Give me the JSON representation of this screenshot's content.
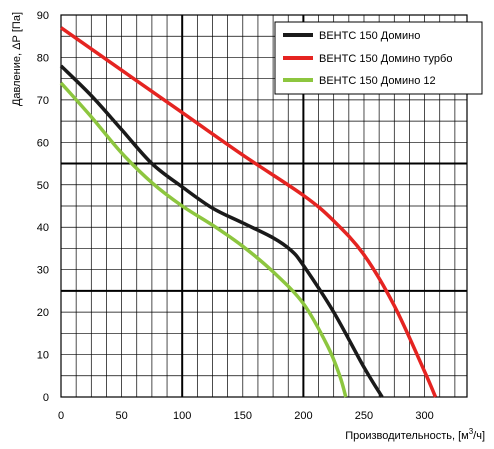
{
  "chart_data": {
    "type": "line",
    "title": "",
    "xlabel": "Производительность, [м",
    "xlabel_sup": "3",
    "xlabel_tail": "/ч]",
    "ylabel": "Давление, ΔР [Па]",
    "xlim": [
      0,
      335
    ],
    "ylim": [
      0,
      90
    ],
    "x_ticks": [
      0,
      50,
      100,
      150,
      200,
      250,
      300
    ],
    "y_ticks": [
      0,
      10,
      20,
      30,
      40,
      50,
      60,
      70,
      80,
      90
    ],
    "x_minor_step": 12.5,
    "y_minor_step": 5,
    "x_major_lines": [
      100,
      200
    ],
    "y_major_lines": [
      25,
      55
    ],
    "grid": true,
    "legend_position": "top-right",
    "series": [
      {
        "name": "ВЕНТС 150 Домино",
        "color": "#1a1a1a",
        "points": [
          [
            0,
            78
          ],
          [
            25,
            71
          ],
          [
            50,
            63
          ],
          [
            75,
            55
          ],
          [
            100,
            49.5
          ],
          [
            125,
            44.5
          ],
          [
            150,
            41
          ],
          [
            175,
            37.5
          ],
          [
            190,
            34.5
          ],
          [
            200,
            31
          ],
          [
            225,
            20
          ],
          [
            250,
            7
          ],
          [
            265,
            0
          ]
        ]
      },
      {
        "name": "ВЕНТС 150 Домино турбо",
        "color": "#e52421",
        "points": [
          [
            0,
            87
          ],
          [
            50,
            77
          ],
          [
            100,
            67
          ],
          [
            150,
            57
          ],
          [
            200,
            47.5
          ],
          [
            225,
            41.5
          ],
          [
            250,
            33.5
          ],
          [
            275,
            21.5
          ],
          [
            300,
            6
          ],
          [
            309,
            0
          ]
        ]
      },
      {
        "name": "ВЕНТС 150 Домино 12",
        "color": "#8dc63f",
        "points": [
          [
            0,
            74
          ],
          [
            25,
            66
          ],
          [
            50,
            57.5
          ],
          [
            75,
            50.5
          ],
          [
            100,
            45
          ],
          [
            125,
            40.5
          ],
          [
            150,
            35.5
          ],
          [
            175,
            29.5
          ],
          [
            200,
            22
          ],
          [
            220,
            12
          ],
          [
            230,
            5
          ],
          [
            235,
            0
          ]
        ]
      }
    ]
  }
}
